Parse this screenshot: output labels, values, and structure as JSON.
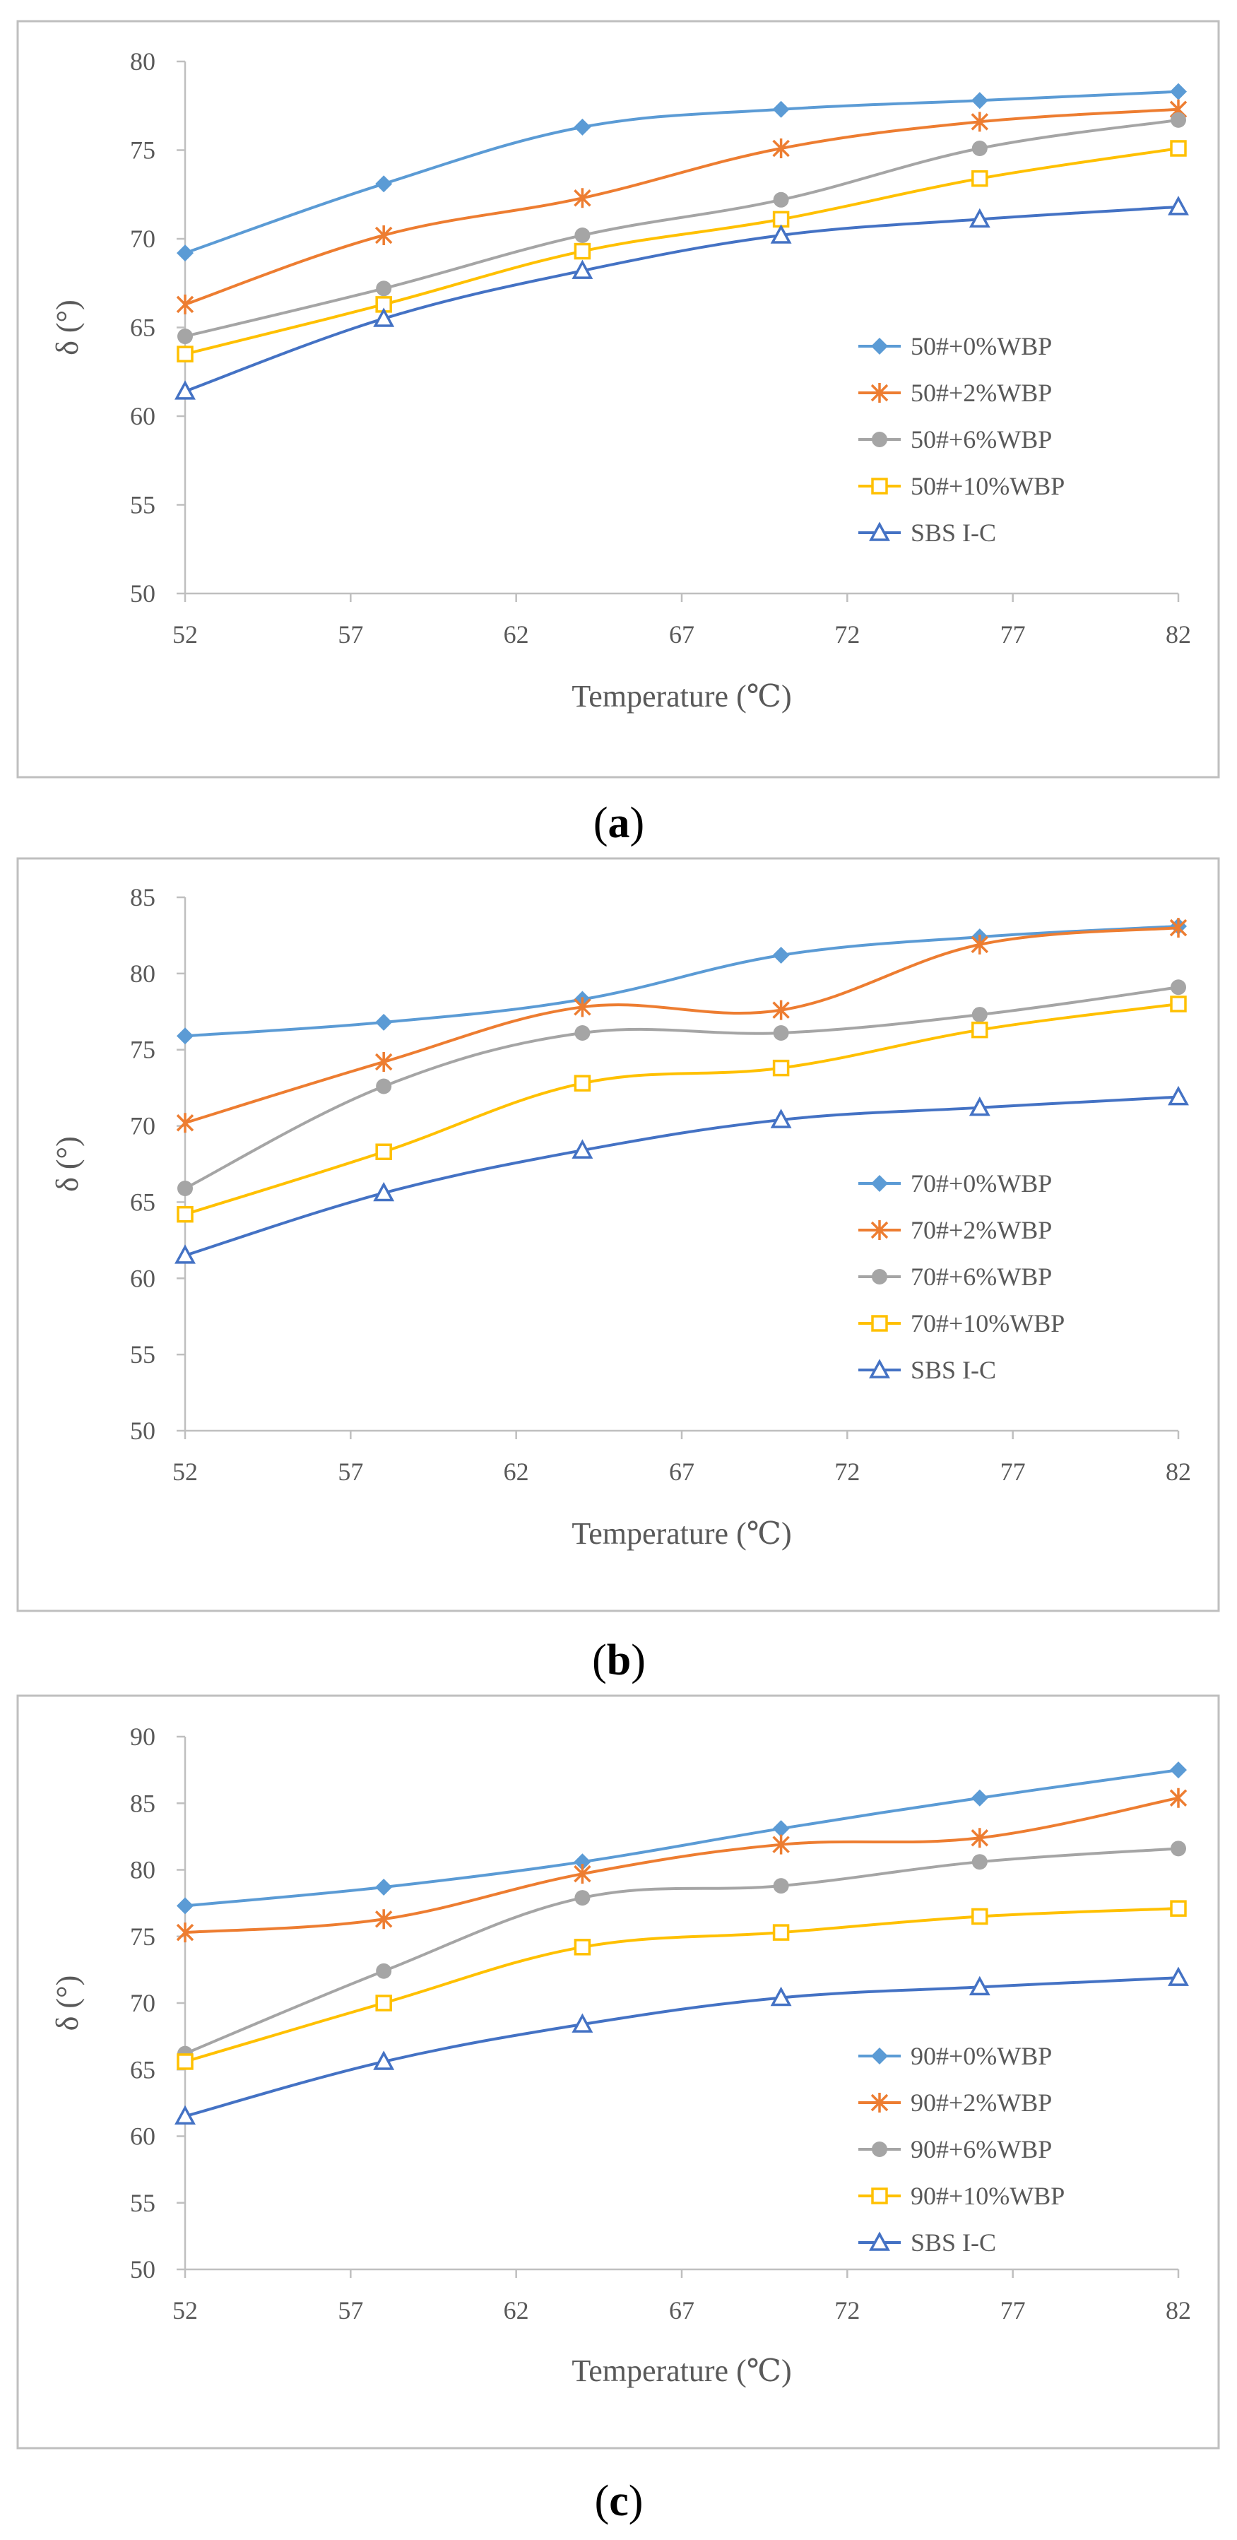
{
  "chart_data": [
    {
      "type": "line",
      "panel_label": "a",
      "xlabel": "Temperature (℃)",
      "ylabel": "δ (°)",
      "xlim": [
        52,
        82
      ],
      "ylim": [
        50,
        80
      ],
      "xticks": [
        "52",
        "57",
        "62",
        "67",
        "72",
        "77",
        "82"
      ],
      "yticks": [
        "50",
        "55",
        "60",
        "65",
        "70",
        "75",
        "80"
      ],
      "x": [
        52,
        58,
        64,
        70,
        76,
        82
      ],
      "legend_position": "right",
      "series": [
        {
          "name": "50#+0%WBP",
          "color": "#5b9bd5",
          "marker": "diamond",
          "values": [
            69.2,
            73.1,
            76.3,
            77.3,
            77.8,
            78.3
          ]
        },
        {
          "name": "50#+2%WBP",
          "color": "#ed7d31",
          "marker": "star",
          "values": [
            66.3,
            70.2,
            72.3,
            75.1,
            76.6,
            77.3
          ]
        },
        {
          "name": "50#+6%WBP",
          "color": "#a5a5a5",
          "marker": "circle",
          "values": [
            64.5,
            67.2,
            70.2,
            72.2,
            75.1,
            76.7
          ]
        },
        {
          "name": "50#+10%WBP",
          "color": "#ffc000",
          "marker": "square",
          "values": [
            63.5,
            66.3,
            69.3,
            71.1,
            73.4,
            75.1
          ]
        },
        {
          "name": "SBS I-C",
          "color": "#4472c4",
          "marker": "triangle",
          "values": [
            61.4,
            65.5,
            68.2,
            70.2,
            71.1,
            71.8
          ]
        }
      ]
    },
    {
      "type": "line",
      "panel_label": "b",
      "xlabel": "Temperature (℃)",
      "ylabel": "δ (°)",
      "xlim": [
        52,
        82
      ],
      "ylim": [
        50,
        85
      ],
      "xticks": [
        "52",
        "57",
        "62",
        "67",
        "72",
        "77",
        "82"
      ],
      "yticks": [
        "50",
        "55",
        "60",
        "65",
        "70",
        "75",
        "80",
        "85"
      ],
      "x": [
        52,
        58,
        64,
        70,
        76,
        82
      ],
      "legend_position": "right",
      "series": [
        {
          "name": "70#+0%WBP",
          "color": "#5b9bd5",
          "marker": "diamond",
          "values": [
            75.9,
            76.8,
            78.3,
            81.2,
            82.4,
            83.1
          ]
        },
        {
          "name": "70#+2%WBP",
          "color": "#ed7d31",
          "marker": "star",
          "values": [
            70.2,
            74.2,
            77.8,
            77.6,
            81.9,
            83.0
          ]
        },
        {
          "name": "70#+6%WBP",
          "color": "#a5a5a5",
          "marker": "circle",
          "values": [
            65.9,
            72.6,
            76.1,
            76.1,
            77.3,
            79.1
          ]
        },
        {
          "name": "70#+10%WBP",
          "color": "#ffc000",
          "marker": "square",
          "values": [
            64.2,
            68.3,
            72.8,
            73.8,
            76.3,
            78.0
          ]
        },
        {
          "name": "SBS I-C",
          "color": "#4472c4",
          "marker": "triangle",
          "values": [
            61.5,
            65.6,
            68.4,
            70.4,
            71.2,
            71.9
          ]
        }
      ]
    },
    {
      "type": "line",
      "panel_label": "c",
      "xlabel": "Temperature (℃)",
      "ylabel": "δ (°)",
      "xlim": [
        52,
        82
      ],
      "ylim": [
        50,
        90
      ],
      "xticks": [
        "52",
        "57",
        "62",
        "67",
        "72",
        "77",
        "82"
      ],
      "yticks": [
        "50",
        "55",
        "60",
        "65",
        "70",
        "75",
        "80",
        "85",
        "90"
      ],
      "x": [
        52,
        58,
        64,
        70,
        76,
        82
      ],
      "legend_position": "right",
      "series": [
        {
          "name": "90#+0%WBP",
          "color": "#5b9bd5",
          "marker": "diamond",
          "values": [
            77.3,
            78.7,
            80.6,
            83.1,
            85.4,
            87.5
          ]
        },
        {
          "name": "90#+2%WBP",
          "color": "#ed7d31",
          "marker": "star",
          "values": [
            75.3,
            76.3,
            79.7,
            81.9,
            82.4,
            85.4
          ]
        },
        {
          "name": "90#+6%WBP",
          "color": "#a5a5a5",
          "marker": "circle",
          "values": [
            66.2,
            72.4,
            77.9,
            78.8,
            80.6,
            81.6
          ]
        },
        {
          "name": "90#+10%WBP",
          "color": "#ffc000",
          "marker": "square",
          "values": [
            65.6,
            70.0,
            74.2,
            75.3,
            76.5,
            77.1
          ]
        },
        {
          "name": "SBS I-C",
          "color": "#4472c4",
          "marker": "triangle",
          "values": [
            61.5,
            65.6,
            68.4,
            70.4,
            71.2,
            71.9
          ]
        }
      ]
    }
  ]
}
